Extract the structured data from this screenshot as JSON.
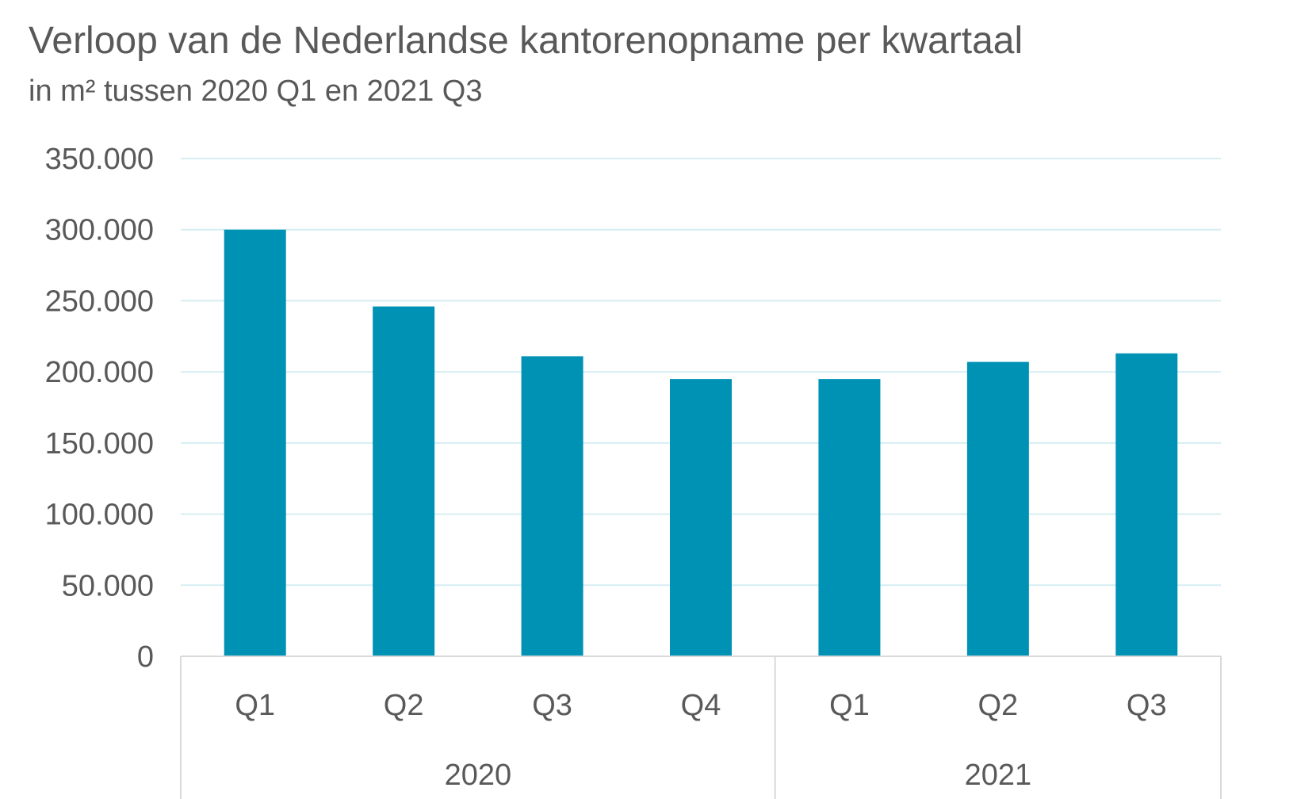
{
  "title": "Verloop van de Nederlandse kantorenopname per kwartaal",
  "subtitle": "in m² tussen 2020 Q1 en 2021 Q3",
  "colors": {
    "bar": "#0092b5",
    "grid": "#d6eef2",
    "axis": "#d9d9d9",
    "text": "#595959"
  },
  "chart_data": {
    "type": "bar",
    "title": "Verloop van de Nederlandse kantorenopname per kwartaal",
    "subtitle": "in m² tussen 2020 Q1 en 2021 Q3",
    "categories": [
      "Q1",
      "Q2",
      "Q3",
      "Q4",
      "Q1",
      "Q2",
      "Q3"
    ],
    "groups": [
      {
        "label": "2020",
        "count": 4
      },
      {
        "label": "2021",
        "count": 3
      }
    ],
    "values": [
      300000,
      246000,
      211000,
      195000,
      195000,
      207000,
      213000
    ],
    "ylim": [
      0,
      350000
    ],
    "yticks": [
      "0",
      "50.000",
      "100.000",
      "150.000",
      "200.000",
      "250.000",
      "300.000",
      "350.000"
    ],
    "ytick_values": [
      0,
      50000,
      100000,
      150000,
      200000,
      250000,
      300000,
      350000
    ],
    "grid": true,
    "legend": "none"
  }
}
